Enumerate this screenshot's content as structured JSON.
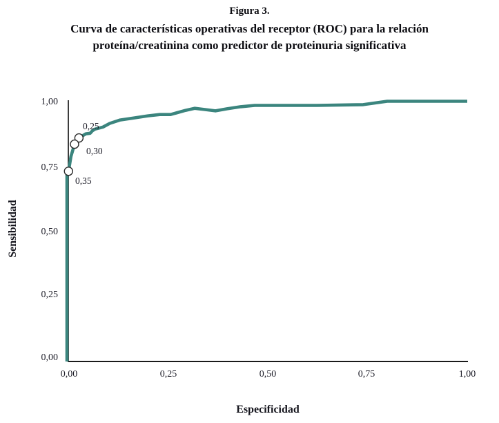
{
  "figure": {
    "label": "Figura 3.",
    "caption_line1": "Curva de características operativas del receptor (ROC) para la relación",
    "caption_line2": "proteína/creatinina como predictor de proteinuria significativa"
  },
  "chart_data": {
    "type": "line",
    "title": "Curva de características operativas del receptor (ROC) para la relación proteína/creatinina como predictor de proteinuria significativa",
    "xlabel": "Especificidad",
    "ylabel": "Sensibilidad",
    "xlim": [
      0,
      1
    ],
    "ylim": [
      0,
      1
    ],
    "grid": false,
    "legend": "none",
    "curve_color": "#3B857E",
    "axis_color": "#1a1a1a",
    "x_tick_labels": [
      "0,00",
      "0,25",
      "0,50",
      "0,75",
      "1,00"
    ],
    "y_tick_labels_top_to_bottom": [
      "1,00",
      "0,75",
      "0,50",
      "0,25",
      "0,00"
    ],
    "series": [
      {
        "name": "ROC proteína/creatinina",
        "points": [
          [
            0.0,
            0.0
          ],
          [
            0.0,
            0.72
          ],
          [
            0.004,
            0.731
          ],
          [
            0.01,
            0.788
          ],
          [
            0.019,
            0.835
          ],
          [
            0.03,
            0.859
          ],
          [
            0.047,
            0.875
          ],
          [
            0.058,
            0.877
          ],
          [
            0.064,
            0.887
          ],
          [
            0.07,
            0.893
          ],
          [
            0.078,
            0.896
          ],
          [
            0.09,
            0.901
          ],
          [
            0.107,
            0.915
          ],
          [
            0.133,
            0.928
          ],
          [
            0.168,
            0.936
          ],
          [
            0.202,
            0.944
          ],
          [
            0.232,
            0.949
          ],
          [
            0.259,
            0.949
          ],
          [
            0.296,
            0.965
          ],
          [
            0.319,
            0.973
          ],
          [
            0.345,
            0.968
          ],
          [
            0.371,
            0.963
          ],
          [
            0.4,
            0.971
          ],
          [
            0.434,
            0.979
          ],
          [
            0.469,
            0.984
          ],
          [
            0.52,
            0.984
          ],
          [
            0.625,
            0.984
          ],
          [
            0.74,
            0.987
          ],
          [
            0.8,
            1.0
          ],
          [
            0.9,
            1.0
          ],
          [
            1.0,
            1.0
          ]
        ]
      }
    ],
    "cutoff_markers": [
      {
        "label": "0,25",
        "x": 0.03,
        "y": 0.859
      },
      {
        "label": "0,30",
        "x": 0.019,
        "y": 0.835
      },
      {
        "label": "0,35",
        "x": 0.004,
        "y": 0.731
      }
    ]
  }
}
